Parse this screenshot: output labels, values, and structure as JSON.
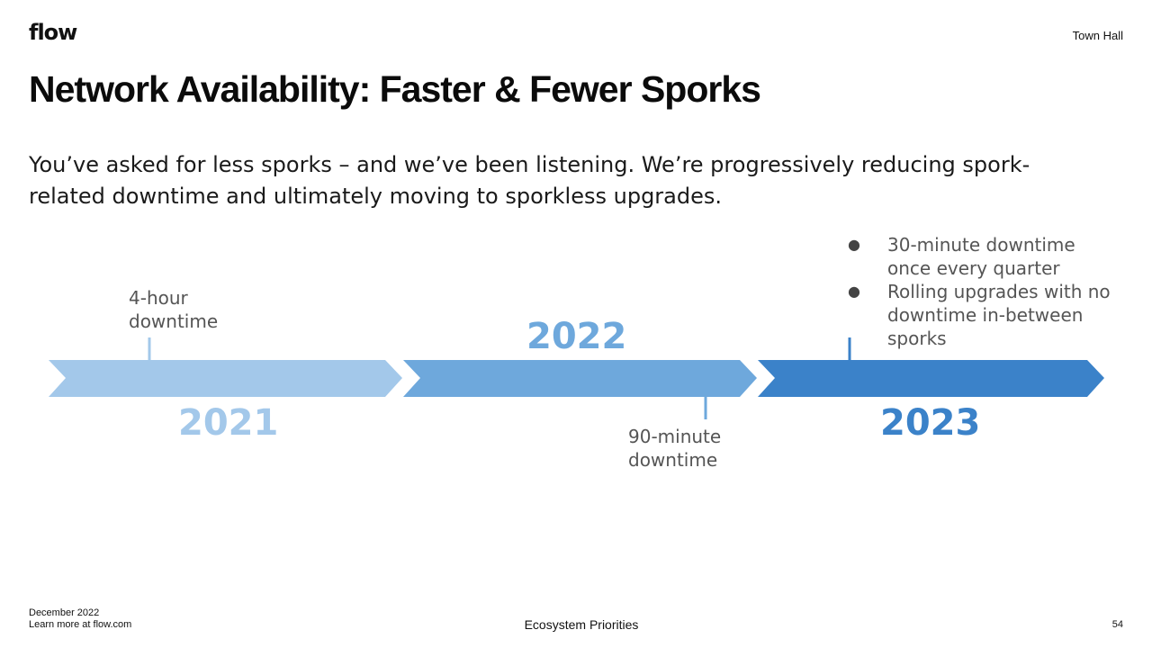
{
  "header": {
    "logo": "flow",
    "section": "Town Hall"
  },
  "slide": {
    "title": "Network Availability: Faster & Fewer Sporks",
    "subtitle": "You’ve asked for less sporks – and we’ve been listening. We’re progressively reducing spork-related downtime and ultimately moving to sporkless upgrades."
  },
  "timeline": {
    "segments": [
      {
        "year": "2021",
        "color": "#a3c8ea",
        "note": [
          "4-hour",
          "downtime"
        ]
      },
      {
        "year": "2022",
        "color": "#6ea8dc",
        "note": [
          "90-minute",
          "downtime"
        ]
      },
      {
        "year": "2023",
        "color": "#3b82c9",
        "bullets": [
          {
            "bullet": "●",
            "lines": [
              "30-minute downtime",
              "once every quarter"
            ]
          },
          {
            "bullet": "●",
            "lines": [
              "Rolling upgrades with no",
              "downtime in-between",
              "sporks"
            ]
          }
        ]
      }
    ]
  },
  "footer": {
    "date": "December 2022",
    "link_text": "Learn more at flow.com",
    "center": "Ecosystem Priorities",
    "page_number": "54"
  }
}
